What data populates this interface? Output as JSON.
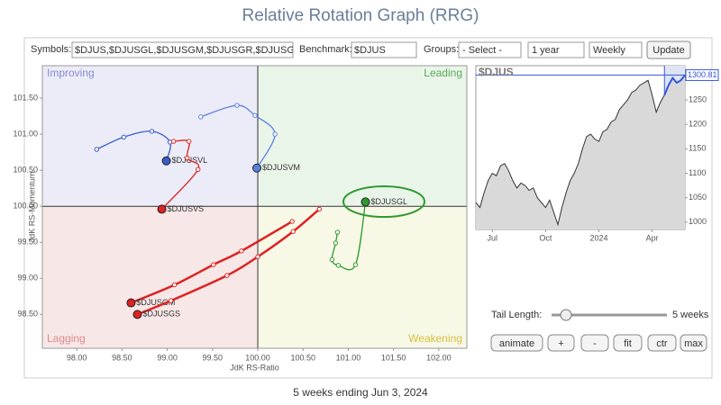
{
  "title": "Relative Rotation Graph (RRG)",
  "toolbar": {
    "symbols_label": "Symbols:",
    "symbols": "$DJUS,$DJUSGL,$DJUSGM,$DJUSGR,$DJUSGS",
    "benchmark_label": "Benchmark:",
    "benchmark": "$DJUS",
    "groups_label": "Groups:",
    "groups": "- Select -",
    "period": "1 year",
    "interval": "Weekly",
    "update": "Update"
  },
  "controls": {
    "tail_length_label": "Tail Length:",
    "tail_length": {
      "value": 5,
      "label": "5 weeks"
    },
    "buttons": [
      "animate",
      "+",
      "-",
      "fit",
      "ctr",
      "max"
    ]
  },
  "footer": "5 weeks ending Jun 3, 2024",
  "chart_data": [
    {
      "type": "scatter",
      "x_label": "JdK RS-Ratio",
      "y_label": "JdK RS-Momentum",
      "quadrant_labels": [
        "Improving",
        "Leading",
        "Lagging",
        "Weakening"
      ],
      "quadrant_colors": [
        "#ececf8",
        "#eaf5ea",
        "#f8e7e7",
        "#f8f8e6"
      ],
      "quadrant_label_colors": [
        "#8a8ad6",
        "#5aaa5a",
        "#e08a8a",
        "#d8c040"
      ],
      "center": [
        100,
        100
      ],
      "xlim": [
        97.62,
        102.31
      ],
      "ylim": [
        98.03,
        101.95
      ],
      "xticks": [
        {
          "value": 98,
          "label": "98.00"
        },
        {
          "value": 98.5,
          "label": "98.50"
        },
        {
          "value": 99,
          "label": "99.00"
        },
        {
          "value": 99.5,
          "label": "99.50"
        },
        {
          "value": 100,
          "label": "100.00"
        },
        {
          "value": 100.5,
          "label": "100.50"
        },
        {
          "value": 101,
          "label": "101.00"
        },
        {
          "value": 101.5,
          "label": "101.50"
        },
        {
          "value": 102,
          "label": "102.00"
        }
      ],
      "yticks": [
        {
          "value": 98.5,
          "label": "98.50"
        },
        {
          "value": 99,
          "label": "99.00"
        },
        {
          "value": 99.5,
          "label": "99.50"
        },
        {
          "value": 100,
          "label": "100.00"
        },
        {
          "value": 100.5,
          "label": "100.50"
        },
        {
          "value": 101,
          "label": "101.00"
        },
        {
          "value": 101.5,
          "label": "101.50"
        }
      ],
      "series": [
        {
          "name": "$DJUSVL",
          "color": "#3a5cc8",
          "x": [
            98.22,
            98.52,
            98.83,
            99.03,
            98.99
          ],
          "y": [
            100.79,
            100.96,
            101.04,
            100.89,
            100.63
          ]
        },
        {
          "name": "$DJUSVM",
          "color": "#5a7ee0",
          "x": [
            99.37,
            99.77,
            99.97,
            100.19,
            99.99
          ],
          "y": [
            101.24,
            101.4,
            101.26,
            101.0,
            100.53
          ]
        },
        {
          "name": "$DJUSVS",
          "color": "#dd2222",
          "x": [
            99.07,
            99.24,
            99.22,
            99.34,
            98.94
          ],
          "y": [
            100.9,
            100.9,
            100.67,
            100.51,
            99.96
          ]
        },
        {
          "name": "$DJUSGM",
          "color": "#dd2222",
          "x": [
            100.38,
            99.82,
            99.51,
            99.08,
            98.6
          ],
          "y": [
            99.79,
            99.38,
            99.19,
            98.91,
            98.66
          ]
        },
        {
          "name": "$DJUSGS",
          "color": "#dd2222",
          "x": [
            100.68,
            100.39,
            100.0,
            99.66,
            99.04,
            98.67
          ],
          "y": [
            99.96,
            99.65,
            99.3,
            99.04,
            98.69,
            98.5
          ]
        },
        {
          "name": "$DJUSGL",
          "color": "#2e9a2e",
          "x": [
            100.88,
            100.86,
            100.82,
            100.89,
            101.08,
            101.19
          ],
          "y": [
            99.64,
            99.49,
            99.26,
            99.18,
            99.19,
            100.06
          ]
        }
      ]
    },
    {
      "type": "line",
      "title": "$DJUS",
      "color": "#333333",
      "fill": "#d9d9d9",
      "tail_color": "#3355dd",
      "xlim": [
        0,
        51
      ],
      "ylim": [
        985,
        1320
      ],
      "xticks": [
        {
          "value": 4,
          "label": "Jul"
        },
        {
          "value": 17,
          "label": "Oct"
        },
        {
          "value": 30,
          "label": "2024"
        },
        {
          "value": 43,
          "label": "Apr"
        }
      ],
      "yticks": [
        1000,
        1050,
        1100,
        1150,
        1200,
        1250,
        1300
      ],
      "values": [
        1040,
        1030,
        1060,
        1085,
        1100,
        1095,
        1115,
        1120,
        1105,
        1085,
        1070,
        1080,
        1075,
        1065,
        1070,
        1050,
        1040,
        1030,
        1045,
        1020,
        995,
        1030,
        1060,
        1085,
        1100,
        1120,
        1150,
        1175,
        1180,
        1170,
        1165,
        1185,
        1190,
        1205,
        1210,
        1230,
        1240,
        1250,
        1265,
        1270,
        1280,
        1285,
        1290,
        1260,
        1225,
        1245,
        1260,
        1280,
        1295,
        1285,
        1290,
        1300.81
      ]
    }
  ]
}
